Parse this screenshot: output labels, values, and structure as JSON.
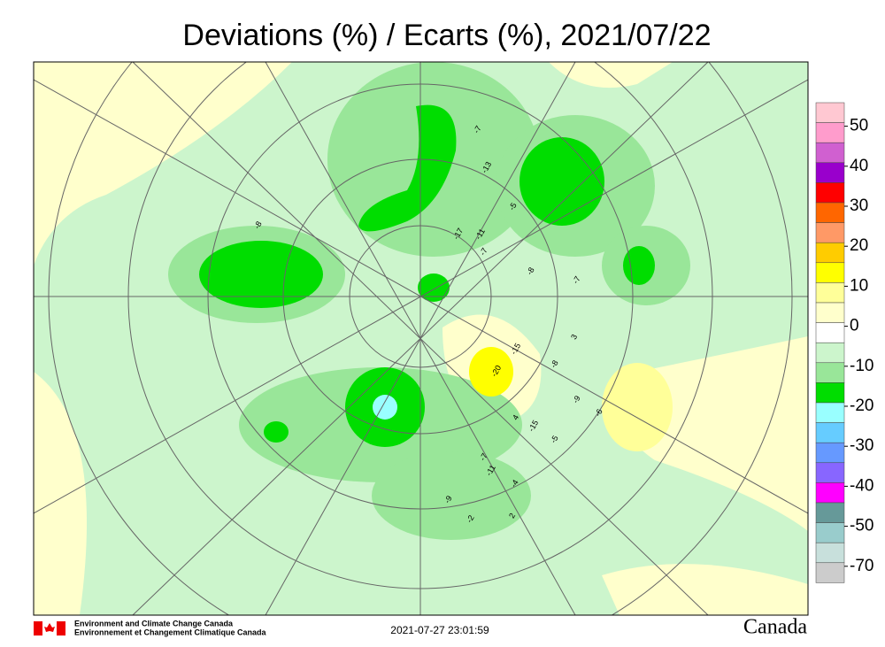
{
  "header": {
    "title": "Deviations (%) / Ecarts (%), 2021/07/22"
  },
  "legend": {
    "colors": [
      "#ffc8d2",
      "#ff9ccc",
      "#d060d0",
      "#9900cc",
      "#ff0000",
      "#ff6600",
      "#ff9966",
      "#ffcc00",
      "#ffff00",
      "#ffff99",
      "#ffffcc",
      "#ffffff",
      "#ccf5cc",
      "#99e699",
      "#00dd00",
      "#99ffff",
      "#66ccff",
      "#6699ff",
      "#8866ff",
      "#ff00ff",
      "#669999",
      "#99cccc",
      "#c8e0dc",
      "#cccccc"
    ],
    "labels": [
      "50",
      "40",
      "30",
      "20",
      "10",
      "0",
      "-10",
      "-20",
      "-30",
      "-40",
      "-50",
      "-70"
    ]
  },
  "stations": [
    "-8",
    "-5",
    "-17",
    "-11",
    "-7",
    "-8",
    "-7",
    "-13",
    "-7",
    "3",
    "-8",
    "-20",
    "-15",
    "4",
    "-15",
    "-5",
    "-9",
    "-6",
    "2",
    "-4",
    "-11",
    "-7",
    "-2",
    "-9"
  ],
  "footer": {
    "agency_en": "Environment and Climate Change Canada",
    "agency_fr": "Environnement et Changement Climatique Canada",
    "timestamp": "2021-07-27 23:01:59",
    "wordmark": "Canada"
  }
}
